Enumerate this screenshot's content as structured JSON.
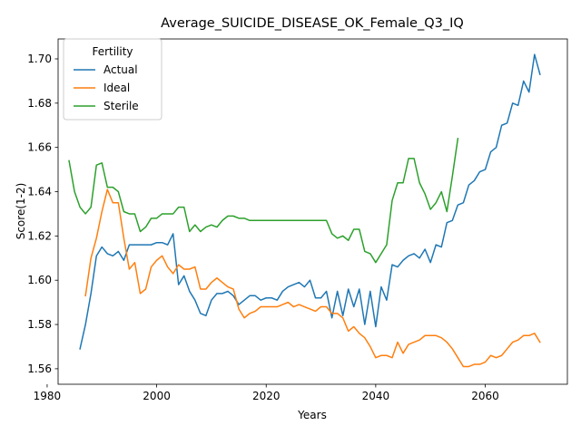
{
  "chart_data": {
    "type": "line",
    "title": "Average_SUICIDE_DISEASE_OK_Female_Q3_IQ",
    "xlabel": "Years",
    "ylabel": "Score(1-2)",
    "xlim": [
      1982,
      2075
    ],
    "ylim": [
      1.553,
      1.709
    ],
    "xticks": [
      1980,
      2000,
      2020,
      2040,
      2060
    ],
    "yticks": [
      1.56,
      1.58,
      1.6,
      1.62,
      1.64,
      1.66,
      1.68,
      1.7
    ],
    "ytick_labels": [
      "1.56",
      "1.58",
      "1.60",
      "1.62",
      "1.64",
      "1.66",
      "1.68",
      "1.70"
    ],
    "grid": false,
    "legend": {
      "title": "Fertility",
      "position": "upper-left"
    },
    "series": [
      {
        "name": "Actual",
        "color": "#1f77b4",
        "points": [
          [
            1986,
            1.569
          ],
          [
            1987,
            1.58
          ],
          [
            1988,
            1.594
          ],
          [
            1989,
            1.611
          ],
          [
            1990,
            1.615
          ],
          [
            1991,
            1.612
          ],
          [
            1992,
            1.611
          ],
          [
            1993,
            1.613
          ],
          [
            1994,
            1.609
          ],
          [
            1995,
            1.616
          ],
          [
            1996,
            1.616
          ],
          [
            1997,
            1.616
          ],
          [
            1998,
            1.616
          ],
          [
            1999,
            1.616
          ],
          [
            2000,
            1.617
          ],
          [
            2001,
            1.617
          ],
          [
            2002,
            1.616
          ],
          [
            2003,
            1.621
          ],
          [
            2004,
            1.598
          ],
          [
            2005,
            1.602
          ],
          [
            2006,
            1.595
          ],
          [
            2007,
            1.591
          ],
          [
            2008,
            1.585
          ],
          [
            2009,
            1.584
          ],
          [
            2010,
            1.591
          ],
          [
            2011,
            1.594
          ],
          [
            2012,
            1.594
          ],
          [
            2013,
            1.595
          ],
          [
            2014,
            1.593
          ],
          [
            2015,
            1.589
          ],
          [
            2016,
            1.591
          ],
          [
            2017,
            1.593
          ],
          [
            2018,
            1.593
          ],
          [
            2019,
            1.591
          ],
          [
            2020,
            1.592
          ],
          [
            2021,
            1.592
          ],
          [
            2022,
            1.591
          ],
          [
            2023,
            1.595
          ],
          [
            2024,
            1.597
          ],
          [
            2025,
            1.598
          ],
          [
            2026,
            1.599
          ],
          [
            2027,
            1.597
          ],
          [
            2028,
            1.6
          ],
          [
            2029,
            1.592
          ],
          [
            2030,
            1.592
          ],
          [
            2031,
            1.595
          ],
          [
            2032,
            1.583
          ],
          [
            2033,
            1.595
          ],
          [
            2034,
            1.584
          ],
          [
            2035,
            1.596
          ],
          [
            2036,
            1.588
          ],
          [
            2037,
            1.596
          ],
          [
            2038,
            1.58
          ],
          [
            2039,
            1.595
          ],
          [
            2040,
            1.579
          ],
          [
            2041,
            1.597
          ],
          [
            2042,
            1.591
          ],
          [
            2043,
            1.607
          ],
          [
            2044,
            1.606
          ],
          [
            2045,
            1.609
          ],
          [
            2046,
            1.611
          ],
          [
            2047,
            1.612
          ],
          [
            2048,
            1.61
          ],
          [
            2049,
            1.614
          ],
          [
            2050,
            1.608
          ],
          [
            2051,
            1.616
          ],
          [
            2052,
            1.615
          ],
          [
            2053,
            1.626
          ],
          [
            2054,
            1.627
          ],
          [
            2055,
            1.634
          ],
          [
            2056,
            1.635
          ],
          [
            2057,
            1.643
          ],
          [
            2058,
            1.645
          ],
          [
            2059,
            1.649
          ],
          [
            2060,
            1.65
          ],
          [
            2061,
            1.658
          ],
          [
            2062,
            1.66
          ],
          [
            2063,
            1.67
          ],
          [
            2064,
            1.671
          ],
          [
            2065,
            1.68
          ],
          [
            2066,
            1.679
          ],
          [
            2067,
            1.69
          ],
          [
            2068,
            1.685
          ],
          [
            2069,
            1.702
          ],
          [
            2070,
            1.693
          ]
        ]
      },
      {
        "name": "Ideal",
        "color": "#ff7f0e",
        "points": [
          [
            1987,
            1.593
          ],
          [
            1988,
            1.61
          ],
          [
            1989,
            1.619
          ],
          [
            1990,
            1.631
          ],
          [
            1991,
            1.641
          ],
          [
            1992,
            1.635
          ],
          [
            1993,
            1.635
          ],
          [
            1994,
            1.619
          ],
          [
            1995,
            1.605
          ],
          [
            1996,
            1.608
          ],
          [
            1997,
            1.594
          ],
          [
            1998,
            1.596
          ],
          [
            1999,
            1.606
          ],
          [
            2000,
            1.609
          ],
          [
            2001,
            1.611
          ],
          [
            2002,
            1.606
          ],
          [
            2003,
            1.603
          ],
          [
            2004,
            1.607
          ],
          [
            2005,
            1.605
          ],
          [
            2006,
            1.605
          ],
          [
            2007,
            1.606
          ],
          [
            2008,
            1.596
          ],
          [
            2009,
            1.596
          ],
          [
            2010,
            1.599
          ],
          [
            2011,
            1.601
          ],
          [
            2012,
            1.599
          ],
          [
            2013,
            1.597
          ],
          [
            2014,
            1.596
          ],
          [
            2015,
            1.587
          ],
          [
            2016,
            1.583
          ],
          [
            2017,
            1.585
          ],
          [
            2018,
            1.586
          ],
          [
            2019,
            1.588
          ],
          [
            2020,
            1.588
          ],
          [
            2021,
            1.588
          ],
          [
            2022,
            1.588
          ],
          [
            2023,
            1.589
          ],
          [
            2024,
            1.59
          ],
          [
            2025,
            1.588
          ],
          [
            2026,
            1.589
          ],
          [
            2027,
            1.588
          ],
          [
            2028,
            1.587
          ],
          [
            2029,
            1.586
          ],
          [
            2030,
            1.588
          ],
          [
            2031,
            1.588
          ],
          [
            2032,
            1.585
          ],
          [
            2033,
            1.585
          ],
          [
            2034,
            1.583
          ],
          [
            2035,
            1.577
          ],
          [
            2036,
            1.579
          ],
          [
            2037,
            1.576
          ],
          [
            2038,
            1.574
          ],
          [
            2039,
            1.57
          ],
          [
            2040,
            1.565
          ],
          [
            2041,
            1.566
          ],
          [
            2042,
            1.566
          ],
          [
            2043,
            1.565
          ],
          [
            2044,
            1.572
          ],
          [
            2045,
            1.567
          ],
          [
            2046,
            1.571
          ],
          [
            2047,
            1.572
          ],
          [
            2048,
            1.573
          ],
          [
            2049,
            1.575
          ],
          [
            2050,
            1.575
          ],
          [
            2051,
            1.575
          ],
          [
            2052,
            1.574
          ],
          [
            2053,
            1.572
          ],
          [
            2054,
            1.569
          ],
          [
            2055,
            1.565
          ],
          [
            2056,
            1.561
          ],
          [
            2057,
            1.561
          ],
          [
            2058,
            1.562
          ],
          [
            2059,
            1.562
          ],
          [
            2060,
            1.563
          ],
          [
            2061,
            1.566
          ],
          [
            2062,
            1.565
          ],
          [
            2063,
            1.566
          ],
          [
            2064,
            1.569
          ],
          [
            2065,
            1.572
          ],
          [
            2066,
            1.573
          ],
          [
            2067,
            1.575
          ],
          [
            2068,
            1.575
          ],
          [
            2069,
            1.576
          ],
          [
            2070,
            1.572
          ]
        ]
      },
      {
        "name": "Sterile",
        "color": "#2ca02c",
        "points": [
          [
            1984,
            1.654
          ],
          [
            1985,
            1.64
          ],
          [
            1986,
            1.633
          ],
          [
            1987,
            1.63
          ],
          [
            1988,
            1.633
          ],
          [
            1989,
            1.652
          ],
          [
            1990,
            1.653
          ],
          [
            1991,
            1.642
          ],
          [
            1992,
            1.642
          ],
          [
            1993,
            1.64
          ],
          [
            1994,
            1.631
          ],
          [
            1995,
            1.63
          ],
          [
            1996,
            1.63
          ],
          [
            1997,
            1.622
          ],
          [
            1998,
            1.624
          ],
          [
            1999,
            1.628
          ],
          [
            2000,
            1.628
          ],
          [
            2001,
            1.63
          ],
          [
            2002,
            1.63
          ],
          [
            2003,
            1.63
          ],
          [
            2004,
            1.633
          ],
          [
            2005,
            1.633
          ],
          [
            2006,
            1.622
          ],
          [
            2007,
            1.625
          ],
          [
            2008,
            1.622
          ],
          [
            2009,
            1.624
          ],
          [
            2010,
            1.625
          ],
          [
            2011,
            1.624
          ],
          [
            2012,
            1.627
          ],
          [
            2013,
            1.629
          ],
          [
            2014,
            1.629
          ],
          [
            2015,
            1.628
          ],
          [
            2016,
            1.628
          ],
          [
            2017,
            1.627
          ],
          [
            2018,
            1.627
          ],
          [
            2019,
            1.627
          ],
          [
            2020,
            1.627
          ],
          [
            2021,
            1.627
          ],
          [
            2022,
            1.627
          ],
          [
            2023,
            1.627
          ],
          [
            2024,
            1.627
          ],
          [
            2025,
            1.627
          ],
          [
            2026,
            1.627
          ],
          [
            2027,
            1.627
          ],
          [
            2028,
            1.627
          ],
          [
            2029,
            1.627
          ],
          [
            2030,
            1.627
          ],
          [
            2031,
            1.627
          ],
          [
            2032,
            1.621
          ],
          [
            2033,
            1.619
          ],
          [
            2034,
            1.62
          ],
          [
            2035,
            1.618
          ],
          [
            2036,
            1.623
          ],
          [
            2037,
            1.623
          ],
          [
            2038,
            1.613
          ],
          [
            2039,
            1.612
          ],
          [
            2040,
            1.608
          ],
          [
            2041,
            1.612
          ],
          [
            2042,
            1.616
          ],
          [
            2043,
            1.636
          ],
          [
            2044,
            1.644
          ],
          [
            2045,
            1.644
          ],
          [
            2046,
            1.655
          ],
          [
            2047,
            1.655
          ],
          [
            2048,
            1.644
          ],
          [
            2049,
            1.639
          ],
          [
            2050,
            1.632
          ],
          [
            2051,
            1.635
          ],
          [
            2052,
            1.64
          ],
          [
            2053,
            1.631
          ],
          [
            2054,
            1.647
          ],
          [
            2055,
            1.664
          ]
        ]
      }
    ]
  }
}
